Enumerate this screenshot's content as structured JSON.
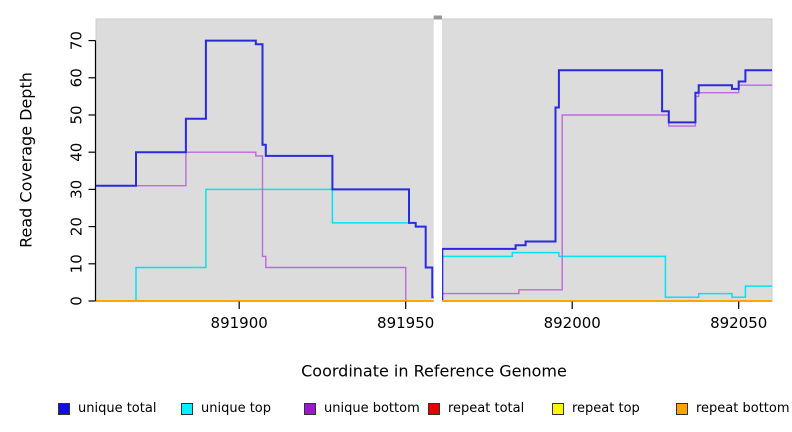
{
  "chart_data": {
    "type": "line",
    "subtype": "step-coverage",
    "title": "",
    "xlabel": "Coordinate in Reference Genome",
    "ylabel": "Read Coverage Depth",
    "xlim": [
      891857,
      892060
    ],
    "ylim": [
      0,
      75.8
    ],
    "x_ticks": [
      891900,
      891950,
      892000,
      892050
    ],
    "x_tick_labels": [
      "891900",
      "891950",
      "892000",
      "892050"
    ],
    "y_ticks": [
      0,
      10,
      20,
      30,
      40,
      50,
      60,
      70
    ],
    "y_tick_labels": [
      "0",
      "10",
      "20",
      "30",
      "40",
      "50",
      "60",
      "70"
    ],
    "grid": false,
    "legend_position": "bottom",
    "plot_bg_color": "#DCDCDC",
    "plot_border_color": "#CDCDCD",
    "gap_region": {
      "start": 891958.4,
      "end": 891960.9,
      "fill": "#FFFFFF",
      "cap_color": "#999999"
    },
    "draw_order": [
      "repeat total",
      "repeat top",
      "unique top",
      "unique bottom",
      "unique total",
      "repeat bottom"
    ],
    "series": [
      {
        "name": "unique total",
        "color": "#2A2ADF",
        "swatch": "#1010E0",
        "width": 2,
        "steps": [
          [
            891857,
            31
          ],
          [
            891869,
            40
          ],
          [
            891884,
            49
          ],
          [
            891890,
            70
          ],
          [
            891905,
            69
          ],
          [
            891907,
            42
          ],
          [
            891908,
            39
          ],
          [
            891928,
            30
          ],
          [
            891951,
            21
          ],
          [
            891953,
            20
          ],
          [
            891956,
            9
          ],
          [
            891958,
            1
          ],
          [
            891959,
            0
          ],
          [
            891961,
            14
          ],
          [
            891983,
            15
          ],
          [
            891986,
            16
          ],
          [
            891995,
            52
          ],
          [
            891996,
            62
          ],
          [
            892027,
            51
          ],
          [
            892029,
            48
          ],
          [
            892037,
            56
          ],
          [
            892038,
            58
          ],
          [
            892048,
            57
          ],
          [
            892050,
            59
          ],
          [
            892052,
            62
          ],
          [
            892060,
            62
          ]
        ]
      },
      {
        "name": "unique top",
        "color": "#00E4EF",
        "swatch": "#00F2FF",
        "width": 1.5,
        "steps": [
          [
            891857,
            0
          ],
          [
            891869,
            9
          ],
          [
            891890,
            30
          ],
          [
            891928,
            21
          ],
          [
            891953,
            20
          ],
          [
            891956,
            9
          ],
          [
            891958,
            1
          ],
          [
            891959,
            0
          ],
          [
            891961,
            12
          ],
          [
            891982,
            13
          ],
          [
            891996,
            12
          ],
          [
            892028,
            1
          ],
          [
            892038,
            2
          ],
          [
            892048,
            1
          ],
          [
            892052,
            4
          ],
          [
            892060,
            4
          ]
        ]
      },
      {
        "name": "unique bottom",
        "color": "#BB6ADF",
        "swatch": "#9918D2",
        "width": 1.4,
        "steps": [
          [
            891857,
            31
          ],
          [
            891884,
            40
          ],
          [
            891905,
            39
          ],
          [
            891907,
            12
          ],
          [
            891908,
            9
          ],
          [
            891950,
            0
          ],
          [
            891961,
            2
          ],
          [
            891984,
            3
          ],
          [
            891997,
            50
          ],
          [
            892029,
            47
          ],
          [
            892037,
            55
          ],
          [
            892038,
            56
          ],
          [
            892050,
            58
          ],
          [
            892060,
            58
          ]
        ]
      },
      {
        "name": "repeat total",
        "color": "#E00000",
        "swatch": "#E60000",
        "width": 1.5,
        "steps": [
          [
            891857,
            0
          ],
          [
            892060,
            0
          ]
        ]
      },
      {
        "name": "repeat top",
        "color": "#FFFF00",
        "swatch": "#FFF500",
        "width": 1.5,
        "steps": [
          [
            891857,
            0
          ],
          [
            892060,
            0
          ]
        ]
      },
      {
        "name": "repeat bottom",
        "color": "#FFA500",
        "swatch": "#FFA200",
        "width": 2,
        "steps": [
          [
            891857,
            0
          ],
          [
            892060,
            0
          ]
        ]
      }
    ]
  }
}
